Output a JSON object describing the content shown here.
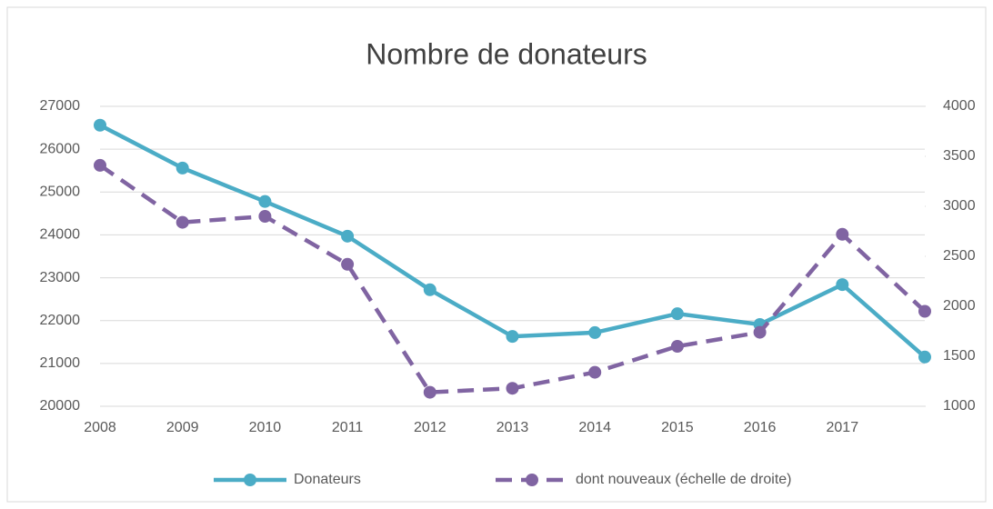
{
  "chart_data": {
    "type": "line",
    "title": "Nombre de donateurs",
    "categories": [
      "2008",
      "2009",
      "2010",
      "2011",
      "2012",
      "2013",
      "2014",
      "2015",
      "2016",
      "2017",
      null
    ],
    "series": [
      {
        "name": "Donateurs",
        "color": "#4bacc6",
        "values": [
          26560,
          25560,
          24780,
          23970,
          22720,
          21630,
          21720,
          22160,
          21910,
          22840,
          21150
        ]
      },
      {
        "name": "dont nouveaux (échelle de droite)",
        "color": "#8064a2",
        "axis": "y2",
        "dashed": true,
        "values": [
          3410,
          2840,
          2900,
          2420,
          1140,
          1180,
          1340,
          1600,
          1740,
          2720,
          1950
        ]
      }
    ],
    "ylim": [
      20000,
      27000
    ],
    "yticks": [
      20000,
      21000,
      22000,
      23000,
      24000,
      25000,
      26000,
      27000
    ],
    "y2lim": [
      1000,
      4000
    ],
    "y2ticks": [
      1000,
      1500,
      2000,
      2500,
      3000,
      3500,
      4000
    ],
    "grid": true,
    "legend": "bottom"
  }
}
